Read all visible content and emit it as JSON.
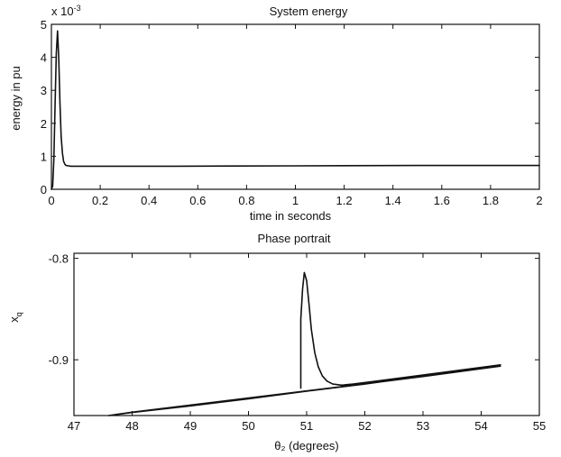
{
  "chart_data": [
    {
      "type": "line",
      "title": "System energy",
      "xlabel": "time in seconds",
      "ylabel": "energy in pu",
      "y_multiplier_label": "x 10",
      "y_multiplier_exponent": "-3",
      "xlim": [
        0,
        2
      ],
      "ylim": [
        0,
        5
      ],
      "x_ticks": [
        0,
        0.2,
        0.4,
        0.6,
        0.8,
        1,
        1.2,
        1.4,
        1.6,
        1.8,
        2
      ],
      "x_tick_labels": [
        "0",
        "0.2",
        "0.4",
        "0.6",
        "0.8",
        "1",
        "1.2",
        "1.4",
        "1.6",
        "1.8",
        "2"
      ],
      "y_ticks": [
        0,
        1,
        2,
        3,
        4,
        5
      ],
      "y_tick_labels": [
        "0",
        "1",
        "2",
        "3",
        "4",
        "5"
      ],
      "grid": false,
      "series": [
        {
          "x": [
            0,
            0.005,
            0.01,
            0.015,
            0.02,
            0.025,
            0.03,
            0.035,
            0.04,
            0.045,
            0.05,
            0.055,
            0.06,
            0.07,
            0.08,
            0.1,
            0.2,
            0.5,
            1.0,
            1.5,
            2.0
          ],
          "y": [
            0,
            0.1,
            0.9,
            2.6,
            4.1,
            4.8,
            4.0,
            2.6,
            1.6,
            1.1,
            0.85,
            0.76,
            0.72,
            0.71,
            0.7,
            0.7,
            0.7,
            0.7,
            0.71,
            0.72,
            0.72
          ]
        }
      ]
    },
    {
      "type": "line",
      "title": "Phase portrait",
      "xlabel": "θ₂  (degrees)",
      "ylabel": "x_q",
      "xlim": [
        47,
        55
      ],
      "ylim": [
        -0.955,
        -0.795
      ],
      "x_ticks": [
        47,
        48,
        49,
        50,
        51,
        52,
        53,
        54,
        55
      ],
      "x_tick_labels": [
        "47",
        "48",
        "49",
        "50",
        "51",
        "52",
        "53",
        "54",
        "55"
      ],
      "y_ticks": [
        -0.8,
        -0.9
      ],
      "y_tick_labels": [
        "-0.8",
        "-0.9"
      ],
      "grid": false,
      "series": [
        {
          "x": [
            50.9,
            50.9,
            50.93,
            50.96,
            51.0,
            51.04,
            51.08,
            51.14,
            51.2,
            51.27,
            51.35,
            51.45,
            51.6,
            51.8,
            52.2,
            53.0,
            54.33,
            53.0,
            52.0,
            51.0,
            50.0,
            49.0,
            48.0,
            47.6,
            48.0,
            49.0,
            50.0,
            51.0,
            52.0,
            53.0,
            54.33
          ],
          "y": [
            -0.928,
            -0.86,
            -0.83,
            -0.814,
            -0.822,
            -0.845,
            -0.87,
            -0.893,
            -0.907,
            -0.916,
            -0.921,
            -0.924,
            -0.925,
            -0.924,
            -0.921,
            -0.915,
            -0.905,
            -0.916,
            -0.924,
            -0.931,
            -0.9385,
            -0.9455,
            -0.952,
            -0.955,
            -0.9517,
            -0.9447,
            -0.9377,
            -0.9307,
            -0.9237,
            -0.9165,
            -0.9063
          ]
        }
      ]
    }
  ]
}
